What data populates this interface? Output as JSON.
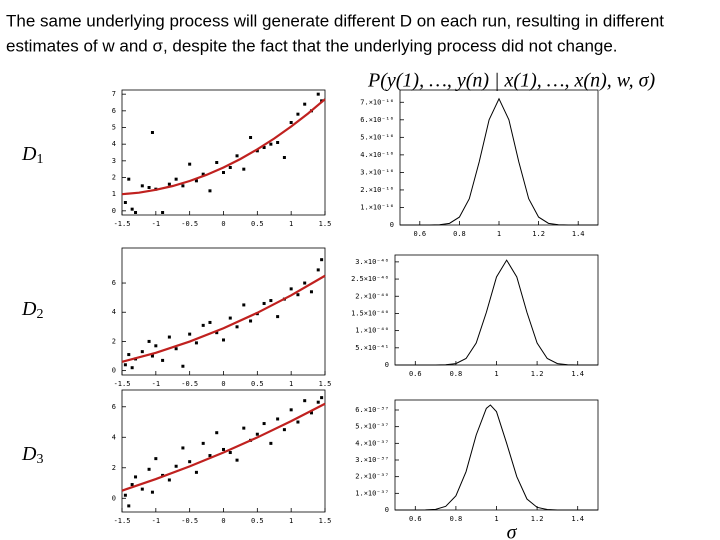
{
  "slide": {
    "lines": [
      "The same underlying process will generate different D on each run, resulting in different",
      "estimates of w and σ, despite the fact that the underlying process did not change."
    ],
    "formula": "P(y(1), …, y(n) | x(1), …, x(n), w, σ)"
  },
  "chart_data": [
    {
      "type": "scatter",
      "label": {
        "main": "D",
        "sub": "1"
      },
      "xlim": [
        -1.5,
        1.5
      ],
      "ylim": [
        -0.25,
        7.25
      ],
      "xticks": [
        -1.5,
        -1,
        -0.5,
        0,
        0.5,
        1,
        1.5
      ],
      "yticks": [
        0,
        1,
        2,
        3,
        4,
        5,
        6,
        7
      ],
      "series": [
        {
          "type": "scatter",
          "color": "#000000",
          "x": [
            -1.45,
            -1.4,
            -1.35,
            -1.3,
            -1.2,
            -1.1,
            -1.05,
            -1.0,
            -0.9,
            -0.8,
            -0.7,
            -0.6,
            -0.5,
            -0.4,
            -0.3,
            -0.2,
            -0.1,
            0,
            0.1,
            0.2,
            0.3,
            0.4,
            0.5,
            0.6,
            0.7,
            0.8,
            0.9,
            1.0,
            1.1,
            1.2,
            1.3,
            1.4,
            1.45
          ],
          "values": [
            0.5,
            1.9,
            0.1,
            -0.1,
            1.5,
            1.4,
            4.7,
            1.3,
            -0.1,
            1.6,
            1.9,
            1.5,
            2.8,
            1.8,
            2.2,
            1.2,
            2.9,
            2.3,
            2.6,
            3.3,
            2.5,
            4.4,
            3.6,
            3.8,
            4.0,
            4.1,
            3.2,
            5.3,
            5.8,
            6.4,
            6.0,
            7.0,
            6.6
          ]
        },
        {
          "type": "line",
          "color": "#c0211f",
          "x": [
            -1.5,
            -1.25,
            -1,
            -0.75,
            -0.5,
            -0.25,
            0,
            0.25,
            0.5,
            0.75,
            1,
            1.25,
            1.5
          ],
          "values": [
            1.0,
            1.09,
            1.26,
            1.49,
            1.79,
            2.16,
            2.6,
            3.11,
            3.69,
            4.34,
            5.06,
            5.84,
            6.7
          ]
        }
      ]
    },
    {
      "type": "scatter",
      "label": {
        "main": "D",
        "sub": "2"
      },
      "xlim": [
        -1.5,
        1.5
      ],
      "ylim": [
        -0.3,
        8.4
      ],
      "xticks": [
        -1.5,
        -1,
        -0.5,
        0,
        0.5,
        1,
        1.5
      ],
      "yticks": [
        0,
        2,
        4,
        6
      ],
      "series": [
        {
          "type": "scatter",
          "color": "#000000",
          "x": [
            -1.45,
            -1.4,
            -1.35,
            -1.3,
            -1.2,
            -1.1,
            -1.05,
            -1.0,
            -0.9,
            -0.8,
            -0.7,
            -0.6,
            -0.5,
            -0.4,
            -0.3,
            -0.2,
            -0.1,
            0,
            0.1,
            0.2,
            0.3,
            0.4,
            0.5,
            0.6,
            0.7,
            0.8,
            0.9,
            1.0,
            1.1,
            1.2,
            1.3,
            1.4,
            1.45
          ],
          "values": [
            0.4,
            1.1,
            0.2,
            0.8,
            1.3,
            2.0,
            1.0,
            1.7,
            0.7,
            2.3,
            1.5,
            0.3,
            2.5,
            1.9,
            3.1,
            3.3,
            2.6,
            2.1,
            3.6,
            3.0,
            4.5,
            3.4,
            3.9,
            4.6,
            4.8,
            3.7,
            4.9,
            5.6,
            5.2,
            6.0,
            5.4,
            6.9,
            7.6
          ]
        },
        {
          "type": "line",
          "color": "#c0211f",
          "x": [
            -1.5,
            -1,
            -0.5,
            0,
            0.5,
            1,
            1.5
          ],
          "values": [
            0.6,
            1.22,
            1.99,
            2.9,
            3.96,
            5.16,
            6.5
          ]
        }
      ]
    },
    {
      "type": "scatter",
      "label": {
        "main": "D",
        "sub": "3"
      },
      "xlim": [
        -1.5,
        1.5
      ],
      "ylim": [
        -0.9,
        7.1
      ],
      "xticks": [
        -1.5,
        -1,
        -0.5,
        0,
        0.5,
        1,
        1.5
      ],
      "yticks": [
        0,
        2,
        4,
        6
      ],
      "series": [
        {
          "type": "scatter",
          "color": "#000000",
          "x": [
            -1.45,
            -1.4,
            -1.35,
            -1.3,
            -1.2,
            -1.1,
            -1.05,
            -1.0,
            -0.9,
            -0.8,
            -0.7,
            -0.6,
            -0.5,
            -0.4,
            -0.3,
            -0.2,
            -0.1,
            0,
            0.1,
            0.2,
            0.3,
            0.4,
            0.5,
            0.6,
            0.7,
            0.8,
            0.9,
            1.0,
            1.1,
            1.2,
            1.3,
            1.4,
            1.45
          ],
          "values": [
            0.2,
            -0.5,
            0.9,
            1.4,
            0.6,
            1.9,
            0.4,
            2.6,
            1.5,
            1.2,
            2.1,
            3.3,
            2.4,
            1.7,
            3.6,
            2.8,
            4.3,
            3.2,
            3.0,
            2.5,
            4.6,
            3.8,
            4.2,
            4.9,
            3.6,
            5.2,
            4.5,
            5.8,
            5.0,
            6.4,
            5.6,
            6.3,
            6.6
          ]
        },
        {
          "type": "line",
          "color": "#c0211f",
          "x": [
            -1.5,
            -1,
            -0.5,
            0,
            0.5,
            1,
            1.5
          ],
          "values": [
            0.5,
            1.26,
            2.09,
            3,
            3.99,
            5.06,
            6.2
          ]
        }
      ]
    },
    {
      "type": "line",
      "xlim": [
        0.5,
        1.5
      ],
      "ylim": [
        0,
        7.7e-16
      ],
      "xticks": [
        0.6,
        0.8,
        1,
        1.2,
        1.4
      ],
      "yticks": [
        0,
        {
          "value": 1e-16,
          "label": "1.×10⁻¹⁶"
        },
        {
          "value": 2e-16,
          "label": "2.×10⁻¹⁶"
        },
        {
          "value": 3e-16,
          "label": "3.×10⁻¹⁶"
        },
        {
          "value": 4e-16,
          "label": "4.×10⁻¹⁶"
        },
        {
          "value": 5e-16,
          "label": "5.×10⁻¹⁶"
        },
        {
          "value": 6e-16,
          "label": "6.×10⁻¹⁶"
        },
        {
          "value": 7e-16,
          "label": "7.×10⁻¹⁶"
        }
      ],
      "series": [
        {
          "color": "#000000",
          "x": [
            0.5,
            0.55,
            0.6,
            0.65,
            0.7,
            0.75,
            0.8,
            0.85,
            0.9,
            0.95,
            1.0,
            1.05,
            1.1,
            1.15,
            1.2,
            1.25,
            1.3,
            1.35,
            1.4,
            1.45,
            1.5
          ],
          "values": [
            0,
            0,
            0,
            0,
            1.4e-18,
            9.4e-18,
            4.5e-17,
            1.5e-16,
            3.6e-16,
            6e-16,
            7.2e-16,
            6e-16,
            3.6e-16,
            1.5e-16,
            4.5e-17,
            9.4e-18,
            1.4e-18,
            0,
            0,
            0,
            0
          ]
        }
      ]
    },
    {
      "type": "line",
      "xlim": [
        0.5,
        1.5
      ],
      "ylim": [
        0,
        3.2e-40
      ],
      "xticks": [
        0.6,
        0.8,
        1,
        1.2,
        1.4
      ],
      "yticks": [
        0,
        {
          "value": 5e-41,
          "label": "5.×10⁻⁴¹"
        },
        {
          "value": 1e-40,
          "label": "1.×10⁻⁴⁰"
        },
        {
          "value": 1.5e-40,
          "label": "1.5×10⁻⁴⁰"
        },
        {
          "value": 2e-40,
          "label": "2.×10⁻⁴⁰"
        },
        {
          "value": 2.5e-40,
          "label": "2.5×10⁻⁴⁰"
        },
        {
          "value": 3e-40,
          "label": "3.×10⁻⁴⁰"
        }
      ],
      "series": [
        {
          "color": "#000000",
          "x": [
            0.5,
            0.55,
            0.6,
            0.65,
            0.7,
            0.75,
            0.8,
            0.85,
            0.9,
            0.95,
            1.0,
            1.05,
            1.1,
            1.15,
            1.2,
            1.25,
            1.3,
            1.35,
            1.4,
            1.45,
            1.5
          ],
          "values": [
            0,
            0,
            0,
            0,
            0,
            6e-43,
            4e-42,
            1.9e-41,
            6.4e-41,
            1.53e-40,
            2.56e-40,
            3.05e-40,
            2.56e-40,
            1.53e-40,
            6.4e-41,
            1.9e-41,
            4e-42,
            6e-43,
            0,
            0,
            0
          ]
        }
      ]
    },
    {
      "type": "line",
      "xlabel": "σ",
      "xlim": [
        0.5,
        1.5
      ],
      "ylim": [
        0,
        6.6e-37
      ],
      "xticks": [
        0.6,
        0.8,
        1,
        1.2,
        1.4
      ],
      "yticks": [
        0,
        {
          "value": 1e-37,
          "label": "1.×10⁻³⁷"
        },
        {
          "value": 2e-37,
          "label": "2.×10⁻³⁷"
        },
        {
          "value": 3e-37,
          "label": "3.×10⁻³⁷"
        },
        {
          "value": 4e-37,
          "label": "4.×10⁻³⁷"
        },
        {
          "value": 5e-37,
          "label": "5.×10⁻³⁷"
        },
        {
          "value": 6e-37,
          "label": "6.×10⁻³⁷"
        }
      ],
      "series": [
        {
          "color": "#000000",
          "x": [
            0.5,
            0.55,
            0.6,
            0.65,
            0.7,
            0.75,
            0.8,
            0.85,
            0.9,
            0.95,
            0.97,
            1.0,
            1.05,
            1.1,
            1.15,
            1.2,
            1.25,
            1.3,
            1.35,
            1.4,
            1.45,
            1.5
          ],
          "values": [
            0,
            0,
            0,
            5e-40,
            4e-39,
            2.2e-38,
            8.5e-38,
            2.3e-37,
            4.5e-37,
            6.1e-37,
            6.3e-37,
            5.9e-37,
            4e-37,
            2e-37,
            6.6e-38,
            1.6e-38,
            2.7e-39,
            3e-40,
            0,
            0,
            0,
            0
          ]
        }
      ]
    }
  ]
}
